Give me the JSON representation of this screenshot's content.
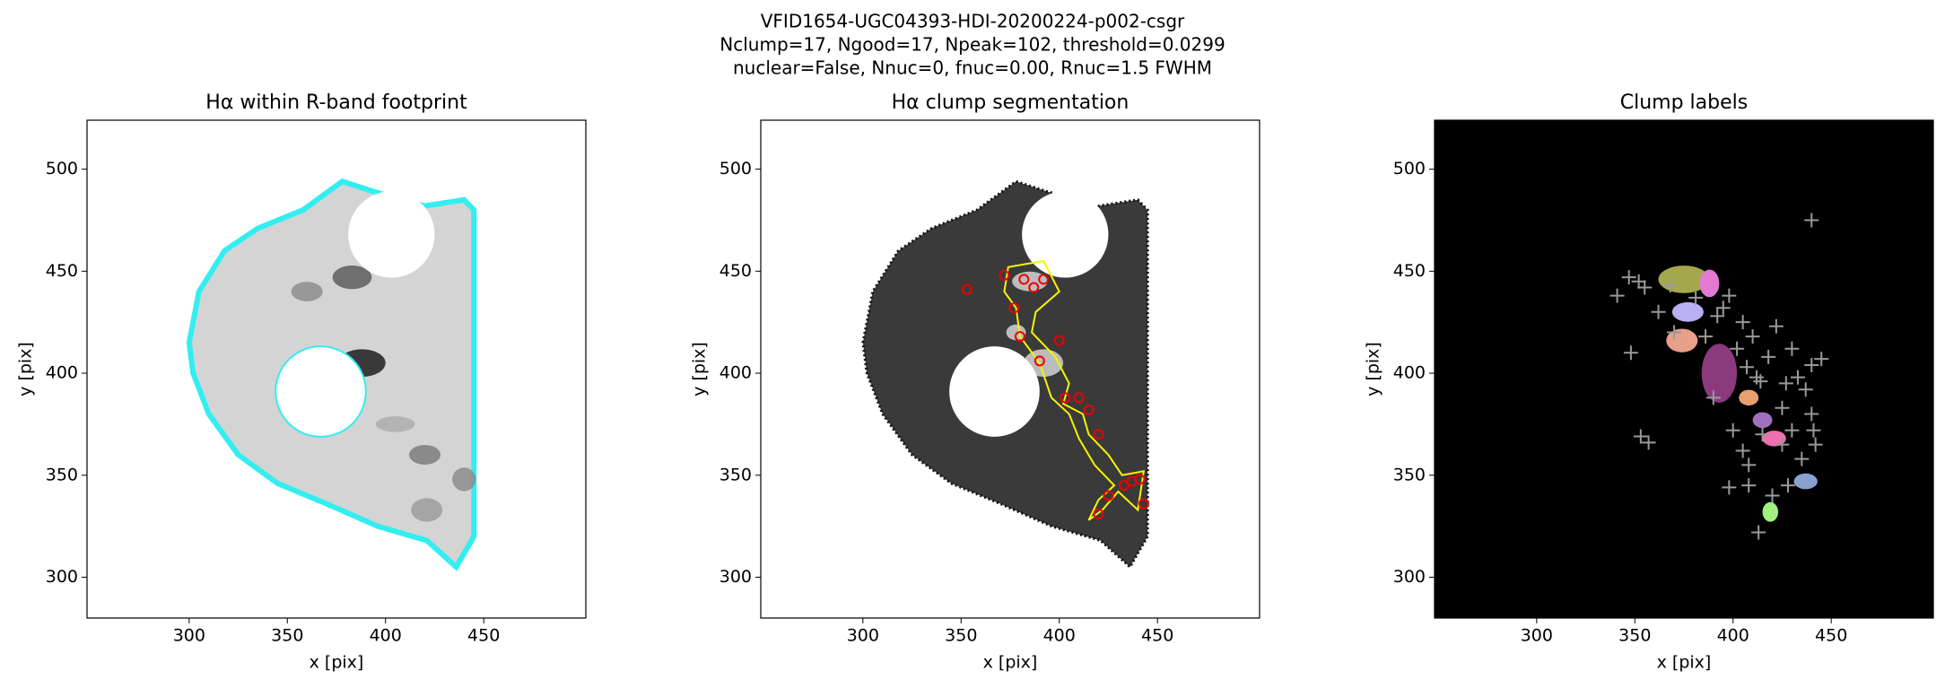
{
  "suptitle": [
    "VFID1654-UGC04393-HDI-20200224-p002-csgr",
    "Nclump=17, Ngood=17, Npeak=102, threshold=0.0299",
    "nuclear=False, Nnuc=0, fnuc=0.00, Rnuc=1.5 FWHM"
  ],
  "chart_data": [
    {
      "type": "image",
      "style": "footprint",
      "title": "Hα within R-band footprint",
      "xlabel": "x [pix]",
      "ylabel": "y [pix]",
      "xlim": [
        248,
        502
      ],
      "ylim": [
        280,
        524
      ],
      "xticks": [
        300,
        350,
        400,
        450
      ],
      "yticks": [
        300,
        350,
        400,
        450,
        500
      ],
      "background": "#ffffff"
    },
    {
      "type": "image",
      "style": "segmentation",
      "title": "Hα clump segmentation",
      "xlabel": "x [pix]",
      "ylabel": "y [pix]",
      "xlim": [
        248,
        502
      ],
      "ylim": [
        280,
        524
      ],
      "xticks": [
        300,
        350,
        400,
        450
      ],
      "yticks": [
        300,
        350,
        400,
        450,
        500
      ],
      "background": "#ffffff"
    },
    {
      "type": "image",
      "style": "labels",
      "title": "Clump labels",
      "xlabel": "x [pix]",
      "ylabel": "y [pix]",
      "xlim": [
        248,
        502
      ],
      "ylim": [
        280,
        524
      ],
      "xticks": [
        300,
        350,
        400,
        450
      ],
      "yticks": [
        300,
        350,
        400,
        450,
        500
      ],
      "background": "#000000"
    }
  ]
}
